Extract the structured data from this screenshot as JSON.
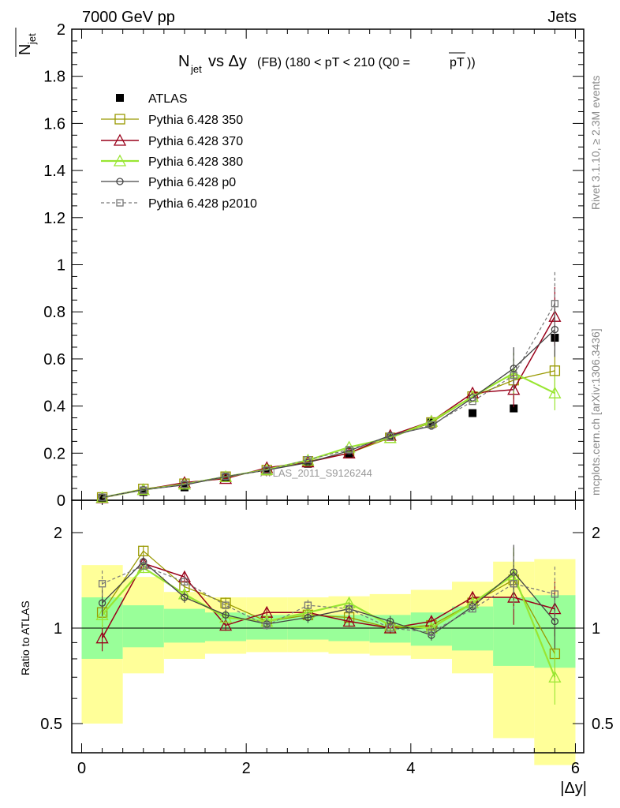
{
  "header": {
    "left": "7000 GeV pp",
    "right": "Jets"
  },
  "side_text": {
    "rivet": "Rivet 3.1.10, ≥ 2.3M events",
    "mcplots": "mcplots.cern.ch [arXiv:1306.3436]"
  },
  "watermark": "ATLAS_2011_S9126244",
  "colors": {
    "atlas": "#000000",
    "p350": "#999900",
    "p370": "#99001a",
    "p380": "#99e632",
    "p0": "#444444",
    "p2010": "#777777",
    "band_yellow": "#ffff99",
    "band_green": "#99ff99"
  },
  "chart_data": [
    {
      "type": "line",
      "title": "N_jet vs Δy (FB) (180 < pT < 210 (Q0 = pT))",
      "ylabel": "N_jet",
      "xlim": [
        -0.1,
        6.1
      ],
      "ylim": [
        0,
        2
      ],
      "x_ticks": [
        "0",
        "2",
        "4",
        "6"
      ],
      "y_ticks": [
        "0",
        "0.2",
        "0.4",
        "0.6",
        "0.8",
        "1",
        "1.2",
        "1.4",
        "1.6",
        "1.8",
        "2"
      ],
      "x": [
        0.25,
        0.75,
        1.25,
        1.75,
        2.25,
        2.75,
        3.25,
        3.75,
        4.25,
        4.75,
        5.25,
        5.75
      ],
      "series": [
        {
          "name": "ATLAS",
          "marker": "filled-square",
          "values": [
            0.01,
            0.035,
            0.055,
            0.095,
            0.125,
            0.155,
            0.195,
            0.27,
            0.33,
            0.37,
            0.39,
            0.69
          ]
        },
        {
          "name": "Pythia 6.428 350",
          "marker": "open-square",
          "values": [
            0.012,
            0.048,
            0.07,
            0.1,
            0.128,
            0.165,
            0.2,
            0.265,
            0.33,
            0.44,
            0.51,
            0.55
          ]
        },
        {
          "name": "Pythia 6.428 370",
          "marker": "open-triangle",
          "values": [
            0.01,
            0.045,
            0.075,
            0.092,
            0.138,
            0.162,
            0.2,
            0.275,
            0.335,
            0.455,
            0.47,
            0.78
          ]
        },
        {
          "name": "Pythia 6.428 380",
          "marker": "open-triangle",
          "values": [
            0.012,
            0.045,
            0.068,
            0.1,
            0.13,
            0.17,
            0.225,
            0.265,
            0.335,
            0.44,
            0.54,
            0.455
          ]
        },
        {
          "name": "Pythia 6.428 p0",
          "marker": "open-circle",
          "values": [
            0.012,
            0.045,
            0.065,
            0.1,
            0.128,
            0.16,
            0.21,
            0.275,
            0.315,
            0.435,
            0.56,
            0.725
          ]
        },
        {
          "name": "Pythia 6.428 p2010",
          "marker": "open-square-dashed",
          "values": [
            0.013,
            0.043,
            0.068,
            0.102,
            0.128,
            0.172,
            0.215,
            0.27,
            0.32,
            0.42,
            0.53,
            0.835
          ]
        }
      ]
    },
    {
      "type": "line",
      "ylabel": "Ratio to ATLAS",
      "xlabel": "|Δy|",
      "xlim": [
        -0.1,
        6.1
      ],
      "ylim": [
        0.4,
        2.3
      ],
      "log_y": true,
      "x_ticks": [
        "0",
        "2",
        "4",
        "6"
      ],
      "y_ticks": [
        "0.5",
        "1",
        "2"
      ],
      "x": [
        0.25,
        0.75,
        1.25,
        1.75,
        2.25,
        2.75,
        3.25,
        3.75,
        4.25,
        4.75,
        5.25,
        5.75
      ],
      "bands": {
        "edges": [
          0,
          0.5,
          1,
          1.5,
          2,
          2.5,
          3,
          3.5,
          4,
          4.5,
          5,
          5.5,
          6
        ],
        "yellow_low": [
          0.5,
          0.72,
          0.8,
          0.83,
          0.84,
          0.84,
          0.83,
          0.82,
          0.8,
          0.72,
          0.45,
          0.37
        ],
        "yellow_high": [
          1.58,
          1.45,
          1.3,
          1.25,
          1.25,
          1.25,
          1.26,
          1.28,
          1.32,
          1.4,
          1.62,
          1.65
        ],
        "green_low": [
          0.8,
          0.87,
          0.9,
          0.91,
          0.92,
          0.92,
          0.91,
          0.9,
          0.88,
          0.85,
          0.76,
          0.75
        ],
        "green_high": [
          1.25,
          1.18,
          1.15,
          1.12,
          1.1,
          1.1,
          1.1,
          1.1,
          1.12,
          1.17,
          1.25,
          1.27
        ]
      },
      "series": [
        {
          "name": "Pythia 6.428 350",
          "values": [
            1.12,
            1.75,
            1.35,
            1.2,
            1.05,
            1.1,
            1.08,
            1.0,
            1.02,
            1.2,
            1.42,
            0.83
          ]
        },
        {
          "name": "Pythia 6.428 370",
          "values": [
            0.93,
            1.6,
            1.45,
            1.02,
            1.12,
            1.12,
            1.05,
            1.0,
            1.05,
            1.25,
            1.25,
            1.15
          ]
        },
        {
          "name": "Pythia 6.428 380",
          "values": [
            1.1,
            1.55,
            1.28,
            1.08,
            1.05,
            1.12,
            1.2,
            1.02,
            1.0,
            1.2,
            1.47,
            0.7
          ]
        },
        {
          "name": "Pythia 6.428 p0",
          "values": [
            1.2,
            1.62,
            1.25,
            1.1,
            1.03,
            1.08,
            1.15,
            1.05,
            0.95,
            1.17,
            1.5,
            1.05
          ]
        },
        {
          "name": "Pythia 6.428 p2010",
          "values": [
            1.38,
            1.57,
            1.4,
            1.18,
            1.02,
            1.18,
            1.15,
            1.0,
            0.97,
            1.15,
            1.38,
            1.28
          ]
        }
      ]
    }
  ]
}
